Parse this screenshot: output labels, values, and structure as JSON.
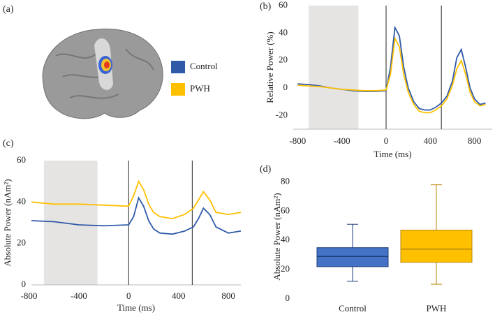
{
  "brain_panel": {
    "label": "(a)"
  },
  "chart_data": [
    {
      "type": "line",
      "panel_label": "(b)",
      "x_label": "Time (ms)",
      "y_label": "Relative Power (%)",
      "xlim": [
        -840,
        960
      ],
      "ylim": [
        -30,
        60
      ],
      "xticks": [
        -800,
        -400,
        0,
        400,
        800
      ],
      "yticks": [
        -20,
        0,
        20,
        40,
        60
      ],
      "shaded_region": [
        -700,
        -250
      ],
      "vlines": [
        0,
        500
      ],
      "x": [
        -800,
        -700,
        -600,
        -500,
        -400,
        -300,
        -200,
        -100,
        0,
        40,
        80,
        120,
        160,
        200,
        250,
        300,
        350,
        400,
        450,
        500,
        550,
        600,
        640,
        680,
        720,
        760,
        800,
        850,
        900
      ],
      "series": [
        {
          "name": "Control",
          "color": "#2e5aa8",
          "values": [
            3,
            2.5,
            1.5,
            0,
            -1,
            -2,
            -2.5,
            -2.5,
            -2,
            15,
            44,
            38,
            15,
            0,
            -10,
            -15,
            -16,
            -16,
            -14,
            -11,
            -6,
            5,
            22,
            28,
            15,
            0,
            -8,
            -12,
            -11
          ]
        },
        {
          "name": "PWH",
          "color": "#ffc000",
          "values": [
            2,
            1.5,
            1,
            0,
            -1,
            -1.5,
            -2,
            -2,
            -1.5,
            10,
            36,
            30,
            10,
            -3,
            -12,
            -17,
            -18,
            -18,
            -16,
            -13,
            -8,
            2,
            14,
            20,
            10,
            -3,
            -10,
            -13,
            -12
          ]
        }
      ]
    },
    {
      "type": "line",
      "panel_label": "(c)",
      "x_label": "Time (ms)",
      "y_label": "Absolute Power (nAm²)",
      "xlim": [
        -780,
        900
      ],
      "ylim": [
        0,
        60
      ],
      "xticks": [
        -800,
        -400,
        0,
        400,
        800
      ],
      "yticks": [
        0,
        20,
        40,
        60
      ],
      "shaded_region": [
        -680,
        -250
      ],
      "vlines": [
        0,
        510
      ],
      "x": [
        -780,
        -600,
        -400,
        -200,
        0,
        40,
        80,
        120,
        160,
        200,
        250,
        350,
        450,
        520,
        560,
        600,
        650,
        700,
        800,
        900
      ],
      "series": [
        {
          "name": "Control",
          "color": "#2e5aa8",
          "values": [
            31,
            30.5,
            29,
            28.5,
            29,
            33,
            42,
            38,
            31,
            27,
            25,
            24.5,
            26,
            28,
            32,
            37,
            34,
            28,
            25,
            26
          ]
        },
        {
          "name": "PWH",
          "color": "#ffc000",
          "values": [
            40,
            39,
            39,
            38.5,
            38,
            43,
            50,
            46,
            39,
            35,
            33,
            32,
            34,
            37,
            41,
            45,
            41,
            35,
            34,
            35
          ]
        }
      ]
    },
    {
      "type": "box",
      "panel_label": "(d)",
      "y_label": "Absolute Power (nAm²)",
      "ylim": [
        0,
        85
      ],
      "yticks": [
        0,
        20,
        40,
        60,
        80
      ],
      "boxes": [
        {
          "name": "Control",
          "color": "#4472c4",
          "min": 12,
          "q1": 22,
          "median": 29,
          "q3": 35,
          "max": 51
        },
        {
          "name": "PWH",
          "color": "#ffc000",
          "min": 10,
          "q1": 25,
          "median": 34,
          "q3": 47,
          "max": 78
        }
      ]
    }
  ]
}
